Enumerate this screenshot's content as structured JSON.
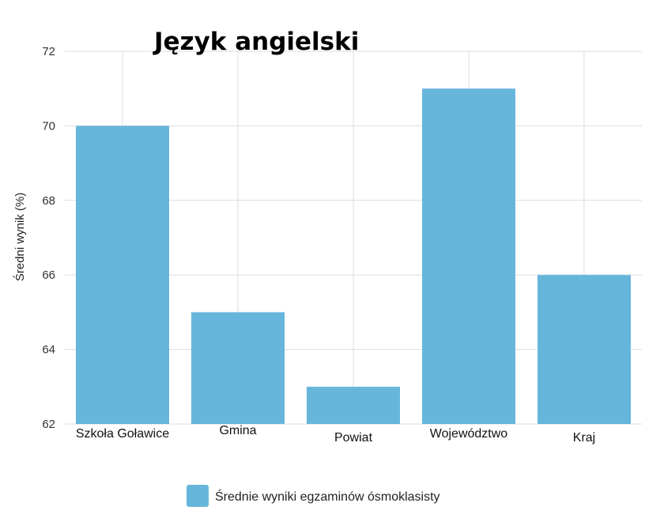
{
  "chart_data": {
    "type": "bar",
    "title": "Język angielski",
    "ylabel": "Średni wynik (%)",
    "xlabel": "",
    "categories": [
      "Szkoła Goławice",
      "Gmina",
      "Powiat",
      "Województwo",
      "Kraj"
    ],
    "series": [
      {
        "name": "Średnie wyniki egzaminów ósmoklasisty",
        "values": [
          70,
          65,
          63,
          71,
          66
        ]
      }
    ],
    "ylim": [
      62,
      72
    ],
    "yticks": [
      62,
      64,
      66,
      68,
      70,
      72
    ],
    "grid": true,
    "legend": "bottom-center",
    "colors": {
      "bar": "#66b6db",
      "grid": "#dddddd"
    }
  }
}
